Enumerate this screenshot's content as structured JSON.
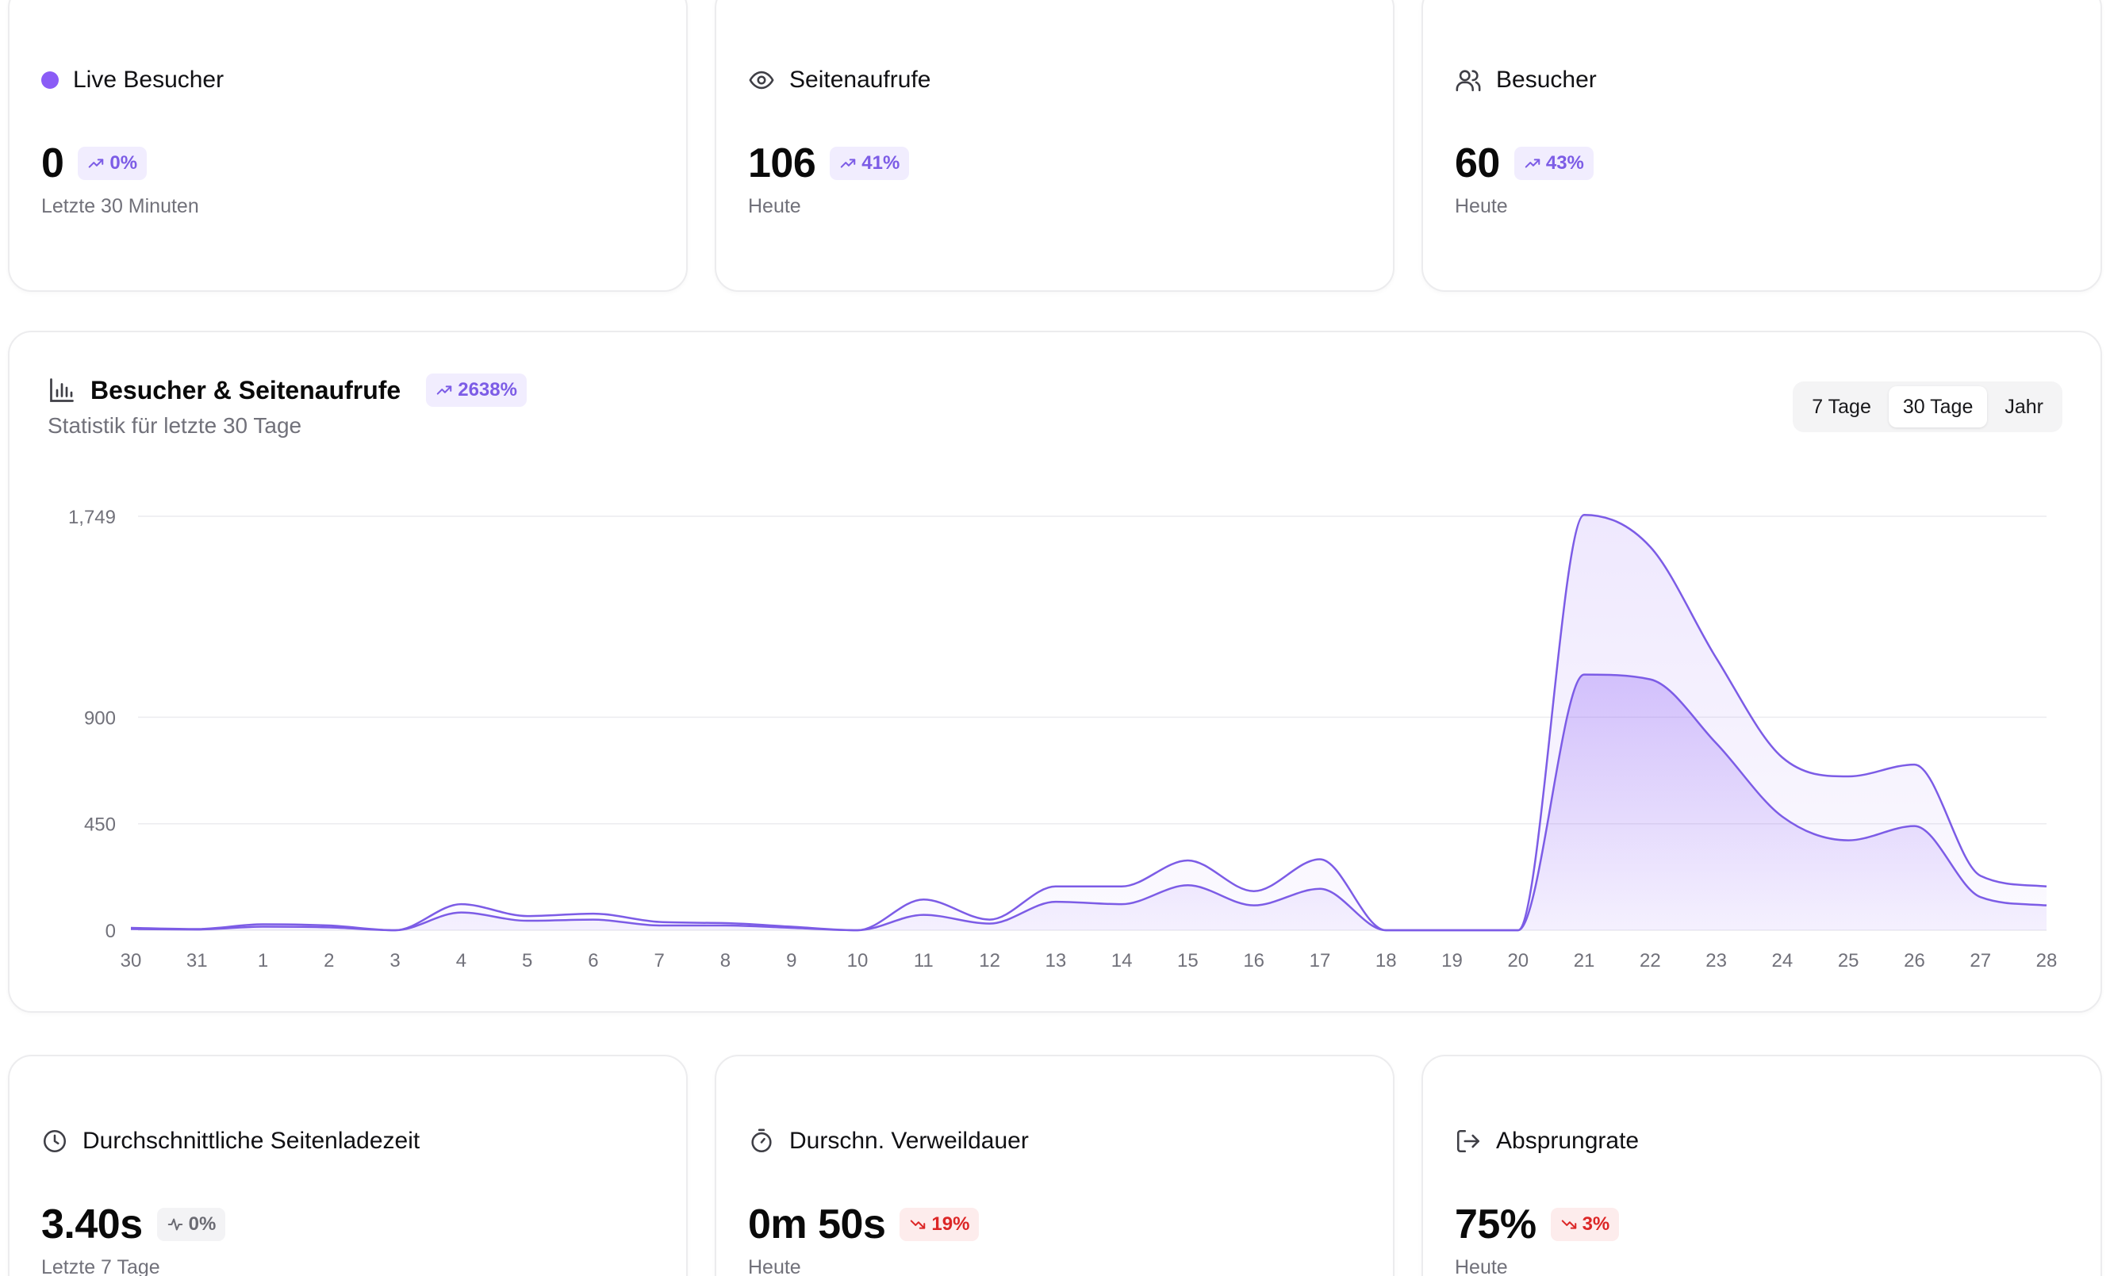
{
  "colors": {
    "accent": "#8b5cf6",
    "line": "#7c5ce6",
    "badge_up_bg": "#f1edfe",
    "badge_down_bg": "#fdecec",
    "danger": "#dc2626",
    "muted": "#71717a"
  },
  "kpis_top": [
    {
      "icon": "live-dot",
      "label": "Live Besucher",
      "value": "0",
      "badge": "0%",
      "trend": "up",
      "caption": "Letzte 30 Minuten"
    },
    {
      "icon": "eye-icon",
      "label": "Seitenaufrufe",
      "value": "106",
      "badge": "41%",
      "trend": "up",
      "caption": "Heute"
    },
    {
      "icon": "users-icon",
      "label": "Besucher",
      "value": "60",
      "badge": "43%",
      "trend": "up",
      "caption": "Heute"
    }
  ],
  "chart_card": {
    "icon": "bar-chart-icon",
    "title": "Besucher & Seitenaufrufe",
    "badge": "2638%",
    "subtitle": "Statistik für letzte 30 Tage",
    "ranges": [
      {
        "label": "7 Tage",
        "active": false
      },
      {
        "label": "30 Tage",
        "active": true
      },
      {
        "label": "Jahr",
        "active": false
      }
    ]
  },
  "chart_data": {
    "type": "area",
    "categories": [
      "30",
      "31",
      "1",
      "2",
      "3",
      "4",
      "5",
      "6",
      "7",
      "8",
      "9",
      "10",
      "11",
      "12",
      "13",
      "14",
      "15",
      "16",
      "17",
      "18",
      "19",
      "20",
      "21",
      "22",
      "23",
      "24",
      "25",
      "26",
      "27",
      "28"
    ],
    "y_ticks": [
      0,
      450,
      900,
      1749
    ],
    "y_tick_labels": [
      "0",
      "450",
      "900",
      "1,749"
    ],
    "ylim": [
      0,
      1749
    ],
    "grid": true,
    "series": [
      {
        "values": [
          10,
          5,
          25,
          20,
          0,
          110,
          60,
          70,
          35,
          30,
          15,
          0,
          130,
          45,
          185,
          185,
          295,
          165,
          300,
          0,
          0,
          0,
          1755,
          1620,
          1150,
          730,
          650,
          700,
          230,
          185
        ]
      },
      {
        "values": [
          5,
          3,
          15,
          12,
          0,
          75,
          40,
          45,
          20,
          20,
          10,
          0,
          65,
          28,
          120,
          110,
          190,
          105,
          175,
          0,
          0,
          0,
          1080,
          1060,
          790,
          480,
          380,
          440,
          140,
          105
        ]
      }
    ]
  },
  "kpis_bottom": [
    {
      "icon": "clock-icon",
      "label": "Durchschnittliche Seitenladezeit",
      "value": "3.40s",
      "badge": "0%",
      "trend": "flat",
      "caption": "Letzte 7 Tage"
    },
    {
      "icon": "stopwatch-icon",
      "label": "Durschn. Verweildauer",
      "value": "0m 50s",
      "badge": "19%",
      "trend": "down",
      "caption": "Heute"
    },
    {
      "icon": "logout-icon",
      "label": "Absprungrate",
      "value": "75%",
      "badge": "3%",
      "trend": "down",
      "caption": "Heute"
    }
  ]
}
